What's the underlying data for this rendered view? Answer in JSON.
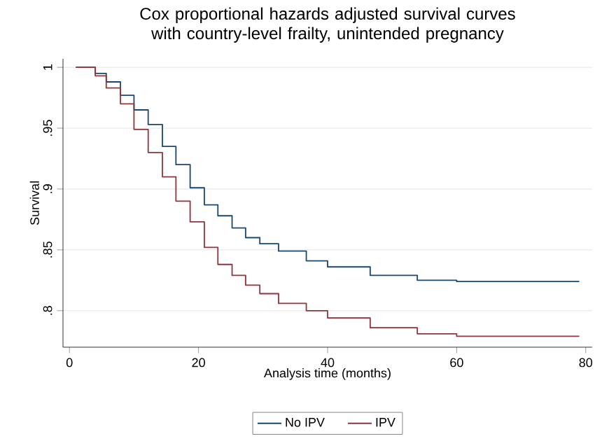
{
  "chart_data": {
    "type": "step",
    "title": "Cox proportional hazards adjusted survival curves with country-level frailty, unintended pregnancy",
    "xlabel": "Analysis time (months)",
    "ylabel": "Survival",
    "xlim": [
      -1,
      81
    ],
    "ylim": [
      0.77,
      1.007
    ],
    "xticks": [
      0,
      20,
      40,
      60,
      80
    ],
    "yticks": [
      {
        "value": 0.8,
        "label": ".8"
      },
      {
        "value": 0.85,
        "label": ".85"
      },
      {
        "value": 0.9,
        "label": ".9"
      },
      {
        "value": 0.95,
        "label": ".95"
      },
      {
        "value": 1,
        "label": "1"
      }
    ],
    "grid": "y",
    "legend": "bottom",
    "marker": "none",
    "line_style": "solid",
    "series": [
      {
        "name": "No IPV",
        "color": "#1a476f",
        "x": [
          1,
          4,
          5.7,
          7.9,
          10,
          12.2,
          14.4,
          16.5,
          18.7,
          20.9,
          23,
          25.2,
          27.3,
          29.5,
          32.4,
          36.7,
          40,
          46.6,
          53.9,
          60,
          79
        ],
        "values": [
          1,
          0.995,
          0.988,
          0.977,
          0.965,
          0.953,
          0.935,
          0.92,
          0.901,
          0.887,
          0.878,
          0.868,
          0.86,
          0.855,
          0.849,
          0.841,
          0.836,
          0.829,
          0.825,
          0.824,
          0.824
        ]
      },
      {
        "name": "IPV",
        "color": "#90353b",
        "x": [
          1,
          4,
          5.7,
          7.9,
          10,
          12.2,
          14.4,
          16.5,
          18.7,
          20.9,
          23,
          25.2,
          27.3,
          29.5,
          32.4,
          36.7,
          40,
          46.6,
          53.9,
          60,
          79
        ],
        "values": [
          1,
          0.993,
          0.983,
          0.97,
          0.949,
          0.93,
          0.91,
          0.89,
          0.873,
          0.852,
          0.838,
          0.829,
          0.821,
          0.814,
          0.806,
          0.8,
          0.794,
          0.786,
          0.781,
          0.779,
          0.779
        ]
      }
    ]
  }
}
